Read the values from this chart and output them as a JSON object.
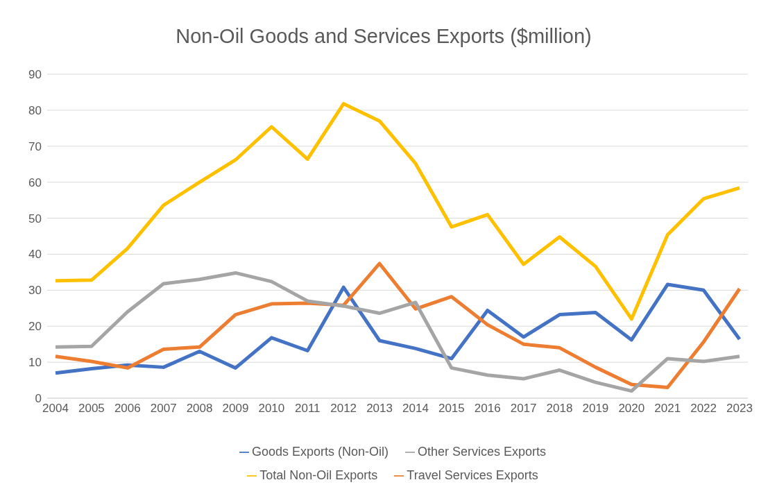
{
  "chart_data": {
    "type": "line",
    "title": "Non-Oil Goods and Services Exports ($million)",
    "categories": [
      "2004",
      "2005",
      "2006",
      "2007",
      "2008",
      "2009",
      "2010",
      "2011",
      "2012",
      "2013",
      "2014",
      "2015",
      "2016",
      "2017",
      "2018",
      "2019",
      "2020",
      "2021",
      "2022",
      "2023"
    ],
    "series": [
      {
        "name": "Goods Exports (Non-Oil)",
        "color": "#4472c4",
        "values": [
          7,
          8.2,
          9.2,
          8.6,
          13,
          8.4,
          16.8,
          13.2,
          30.8,
          16,
          13.8,
          11,
          24.4,
          17,
          23.2,
          23.8,
          16.2,
          31.6,
          30,
          16.4
        ]
      },
      {
        "name": "Travel Services Exports",
        "color": "#ed7d31",
        "values": [
          11.6,
          10.2,
          8.4,
          13.6,
          14.2,
          23.2,
          26.2,
          26.4,
          25.8,
          37.4,
          24.8,
          28.2,
          20.4,
          15,
          14,
          8.6,
          3.8,
          3,
          15.6,
          30.4
        ]
      },
      {
        "name": "Other Services Exports",
        "color": "#a5a5a5",
        "values": [
          14.2,
          14.4,
          24,
          31.8,
          33,
          34.8,
          32.4,
          27,
          25.6,
          23.6,
          26.6,
          8.4,
          6.4,
          5.4,
          7.8,
          4.4,
          2,
          11,
          10.2,
          11.6
        ]
      },
      {
        "name": "Total Non-Oil Exports",
        "color": "#ffc000",
        "values": [
          32.6,
          32.8,
          41.6,
          53.6,
          60,
          66.2,
          75.4,
          66.4,
          81.8,
          77,
          65.2,
          47.6,
          51,
          37.2,
          44.8,
          36.6,
          22,
          45.4,
          55.4,
          58.4
        ]
      }
    ],
    "ylim": [
      0,
      90
    ],
    "yticks": [
      0,
      10,
      20,
      30,
      40,
      50,
      60,
      70,
      80,
      90
    ],
    "grid": "y",
    "legend": "bottom",
    "marker": "none",
    "line_style": "solid"
  }
}
